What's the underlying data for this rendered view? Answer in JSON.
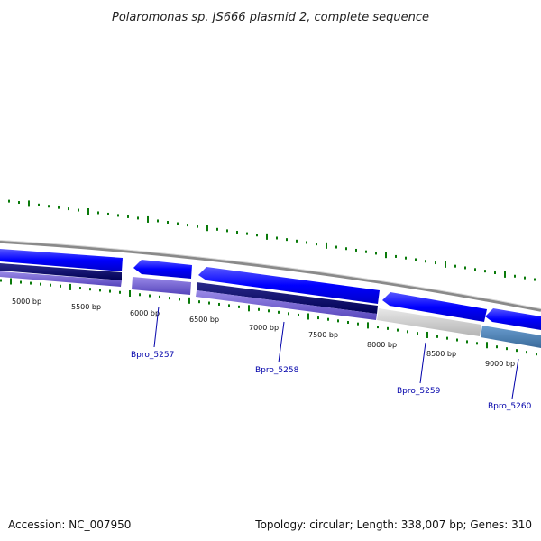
{
  "title": "Polaromonas sp. JS666 plasmid 2, complete sequence",
  "footer": {
    "accession": "Accession: NC_007950",
    "summary": "Topology: circular; Length: 338,007 bp; Genes: 310"
  },
  "scale_labels": [
    "5000 bp",
    "5500 bp",
    "6000 bp",
    "6500 bp",
    "7000 bp",
    "7500 bp",
    "8000 bp",
    "8500 bp",
    "9000 bp"
  ],
  "gene_labels": [
    "Bpro_5257",
    "Bpro_5258",
    "Bpro_5259",
    "Bpro_5260"
  ],
  "colors": {
    "gene_forward": "#0000ff",
    "gene_dark": "#000066",
    "gene_purple": "#6655cc",
    "gene_grey": "#c8c8c8",
    "gene_steel": "#4a82b4",
    "tick_green": "#0a7a0a",
    "backbone": "#888888",
    "gene_label": "#0000aa"
  }
}
